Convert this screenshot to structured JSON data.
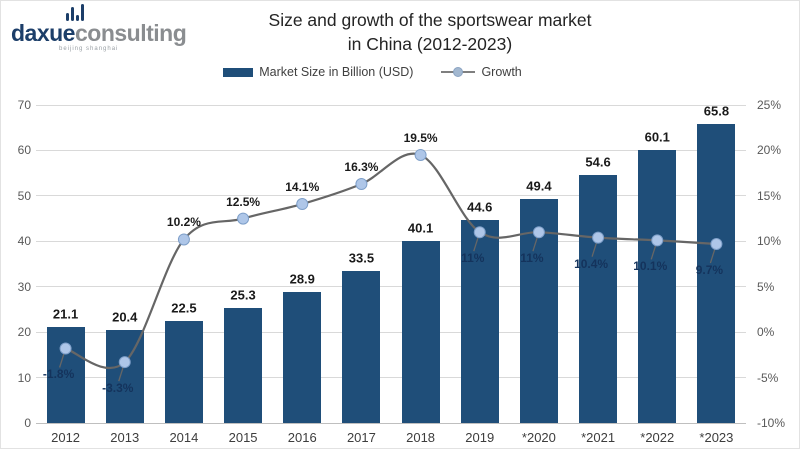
{
  "logo": {
    "brand_bold": "daxue",
    "brand_light": "consulting",
    "tagline": "beijing shanghai"
  },
  "title": {
    "line1": "Size and growth of the sportswear market",
    "line2": "in China (2012-2023)"
  },
  "legend": {
    "bar_label": "Market Size in Billion (USD)",
    "line_label": "Growth"
  },
  "colors": {
    "bar": "#1f4e79",
    "line": "#666666",
    "marker_fill": "#aec6e8",
    "marker_stroke": "#7e9fc9",
    "grid": "#d9d9d9",
    "axis_text": "#595959",
    "brand_navy": "#1c3e69",
    "brand_gray": "#8a8d90"
  },
  "chart_data": {
    "type": "bar",
    "subtype": "bar-line-combo",
    "title": "Size and growth of the sportswear market in China (2012-2023)",
    "categories": [
      "2012",
      "2013",
      "2014",
      "2015",
      "2016",
      "2017",
      "2018",
      "2019",
      "*2020",
      "*2021",
      "*2022",
      "*2023"
    ],
    "series": [
      {
        "name": "Market Size in Billion (USD)",
        "type": "bar",
        "axis": "left",
        "values": [
          21.1,
          20.4,
          22.5,
          25.3,
          28.9,
          33.5,
          40.1,
          44.6,
          49.4,
          54.6,
          60.1,
          65.8
        ],
        "value_labels": [
          "21.1",
          "20.4",
          "22.5",
          "25.3",
          "28.9",
          "33.5",
          "40.1",
          "44.6",
          "49.4",
          "54.6",
          "60.1",
          "65.8"
        ]
      },
      {
        "name": "Growth",
        "type": "line",
        "axis": "right",
        "values": [
          -1.8,
          -3.3,
          10.2,
          12.5,
          14.1,
          16.3,
          19.5,
          11,
          11,
          10.4,
          10.1,
          9.7
        ],
        "value_labels": [
          "-1.8%",
          "-3.3%",
          "10.2%",
          "12.5%",
          "14.1%",
          "16.3%",
          "19.5%",
          "11%",
          "11%",
          "10.4%",
          "10.1%",
          "9.7%"
        ],
        "label_positions": [
          "below",
          "below",
          "above",
          "above",
          "above",
          "above",
          "above",
          "below",
          "below",
          "below",
          "below",
          "below"
        ]
      }
    ],
    "left_axis": {
      "min": 0,
      "max": 70,
      "step": 10,
      "ticks": [
        "0",
        "10",
        "20",
        "30",
        "40",
        "50",
        "60",
        "70"
      ]
    },
    "right_axis": {
      "min": -10,
      "max": 25,
      "step": 5,
      "ticks": [
        "-10%",
        "-5%",
        "0%",
        "5%",
        "10%",
        "15%",
        "20%",
        "25%"
      ]
    },
    "grid": true,
    "legend_position": "top"
  }
}
